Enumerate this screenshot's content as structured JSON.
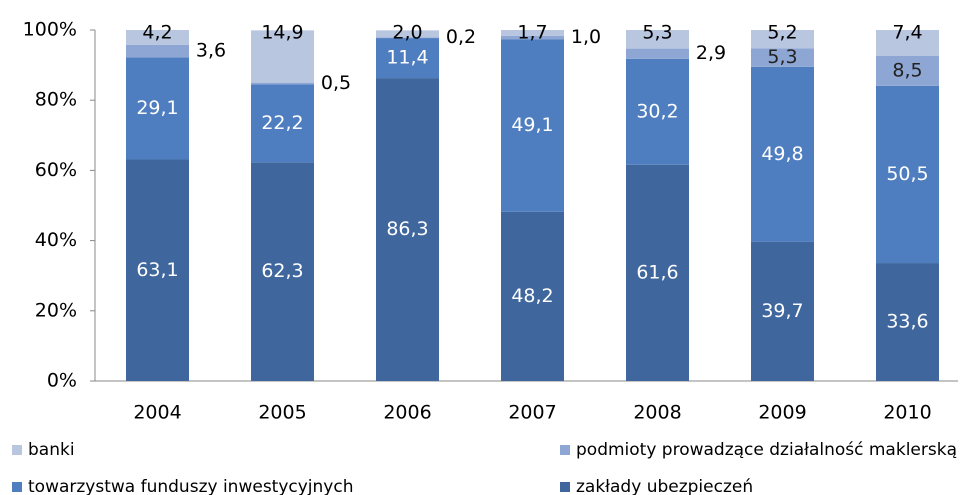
{
  "chart_data": {
    "type": "stacked_bar_100",
    "categories": [
      "2004",
      "2005",
      "2006",
      "2007",
      "2008",
      "2009",
      "2010"
    ],
    "series": [
      {
        "name": "banki",
        "color": "#b9c6e0",
        "values": [
          4.2,
          14.9,
          2.0,
          1.7,
          5.3,
          5.2,
          7.4
        ],
        "value_labels": [
          "4,2",
          "14,9",
          "2,0",
          "1,7",
          "5,3",
          "5,2",
          "7,4"
        ]
      },
      {
        "name": "podmioty prowadzące działalność maklerską",
        "color": "#8ea6d3",
        "values": [
          3.6,
          0.5,
          0.2,
          1.0,
          2.9,
          5.3,
          8.5
        ],
        "value_labels": [
          "3,6",
          "0,5",
          "0,2",
          "1,0",
          "2,9",
          "5,3",
          "8,5"
        ]
      },
      {
        "name": "towarzystwa funduszy inwestycyjnych",
        "color": "#4f7ec0",
        "values": [
          29.1,
          22.2,
          11.4,
          49.1,
          30.2,
          49.8,
          50.5
        ],
        "value_labels": [
          "29,1",
          "22,2",
          "11,4",
          "49,1",
          "30,2",
          "49,8",
          "50,5"
        ]
      },
      {
        "name": "zakłady ubezpieczeń",
        "color": "#3f679e",
        "values": [
          63.1,
          62.3,
          86.3,
          48.2,
          61.6,
          39.7,
          33.6
        ],
        "value_labels": [
          "63,1",
          "62,3",
          "86,3",
          "48,2",
          "61,6",
          "39,7",
          "33,6"
        ]
      }
    ],
    "ylim": [
      0,
      100
    ],
    "yticks": [
      {
        "value": 0,
        "label": "0%"
      },
      {
        "value": 20,
        "label": "20%"
      },
      {
        "value": 40,
        "label": "40%"
      },
      {
        "value": 60,
        "label": "60%"
      },
      {
        "value": 80,
        "label": "80%"
      },
      {
        "value": 100,
        "label": "100%"
      }
    ],
    "grid": false
  }
}
